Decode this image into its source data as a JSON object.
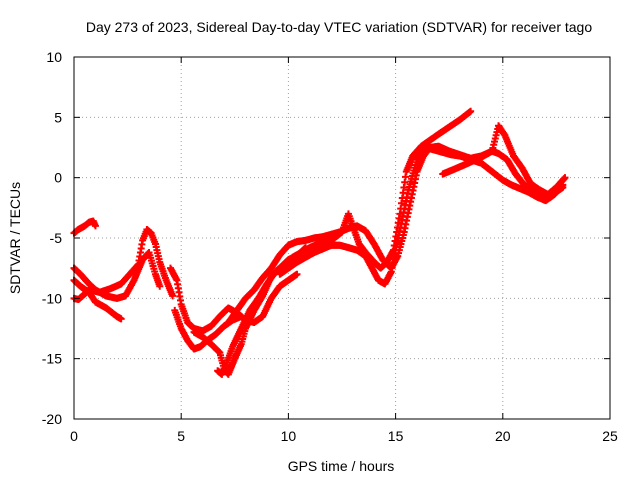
{
  "chart_data": {
    "type": "scatter",
    "title": "Day 273 of 2023, Sidereal Day-to-day VTEC variation (SDTVAR) for receiver tago",
    "xlabel": "GPS time / hours",
    "ylabel": "SDTVAR / TECUs",
    "xlim": [
      0,
      25
    ],
    "ylim": [
      -20,
      10
    ],
    "x_ticks": [
      0,
      5,
      10,
      15,
      20,
      25
    ],
    "y_ticks": [
      -20,
      -15,
      -10,
      -5,
      0,
      5,
      10
    ],
    "x_tick_labels": [
      "0",
      "5",
      "10",
      "15",
      "20",
      "25"
    ],
    "y_tick_labels": [
      "-20",
      "-15",
      "-10",
      "-5",
      "0",
      "5",
      "10"
    ],
    "grid": true,
    "marker": "plus",
    "color": "#ff0000",
    "series": [
      {
        "points": [
          [
            0.0,
            -4.6
          ],
          [
            0.2,
            -4.3
          ],
          [
            0.5,
            -4.0
          ],
          [
            0.7,
            -3.7
          ],
          [
            0.9,
            -3.6
          ],
          [
            1.0,
            -4.0
          ]
        ]
      },
      {
        "points": [
          [
            0.0,
            -7.5
          ],
          [
            0.3,
            -8.0
          ],
          [
            0.7,
            -8.8
          ],
          [
            1.0,
            -9.3
          ],
          [
            1.5,
            -9.8
          ],
          [
            2.0,
            -10.0
          ],
          [
            2.4,
            -9.8
          ],
          [
            2.8,
            -8.5
          ],
          [
            3.2,
            -6.8
          ],
          [
            3.5,
            -6.2
          ],
          [
            3.8,
            -8.0
          ],
          [
            4.0,
            -9.0
          ]
        ]
      },
      {
        "points": [
          [
            0.0,
            -8.5
          ],
          [
            0.3,
            -9.0
          ],
          [
            0.7,
            -9.5
          ],
          [
            1.0,
            -10.3
          ],
          [
            1.5,
            -10.8
          ],
          [
            2.0,
            -11.5
          ],
          [
            2.2,
            -11.7
          ]
        ]
      },
      {
        "points": [
          [
            0.0,
            -10.0
          ],
          [
            0.2,
            -10.1
          ],
          [
            0.4,
            -9.8
          ],
          [
            0.7,
            -9.3
          ],
          [
            1.2,
            -9.5
          ],
          [
            1.7,
            -9.2
          ],
          [
            2.2,
            -8.8
          ],
          [
            2.6,
            -8.0
          ],
          [
            3.0,
            -7.2
          ],
          [
            3.2,
            -5.2
          ],
          [
            3.4,
            -4.3
          ],
          [
            3.6,
            -4.6
          ],
          [
            3.8,
            -5.5
          ],
          [
            4.0,
            -7.0
          ],
          [
            4.3,
            -8.5
          ],
          [
            4.6,
            -9.8
          ]
        ]
      },
      {
        "points": [
          [
            4.5,
            -7.5
          ],
          [
            4.8,
            -8.5
          ],
          [
            5.0,
            -10.5
          ],
          [
            5.3,
            -12.0
          ],
          [
            5.6,
            -12.5
          ],
          [
            6.0,
            -12.7
          ],
          [
            6.4,
            -12.3
          ],
          [
            6.8,
            -11.5
          ],
          [
            7.2,
            -10.8
          ],
          [
            7.6,
            -11.2
          ],
          [
            8.0,
            -11.8
          ],
          [
            8.4,
            -12.0
          ],
          [
            8.8,
            -11.5
          ],
          [
            9.2,
            -10.0
          ],
          [
            9.6,
            -9.0
          ],
          [
            10.0,
            -8.5
          ],
          [
            10.4,
            -8.0
          ]
        ]
      },
      {
        "points": [
          [
            4.7,
            -11.0
          ],
          [
            5.0,
            -12.5
          ],
          [
            5.3,
            -13.5
          ],
          [
            5.6,
            -14.2
          ],
          [
            5.9,
            -14.0
          ],
          [
            6.2,
            -13.5
          ],
          [
            6.6,
            -13.0
          ],
          [
            7.0,
            -12.3
          ],
          [
            7.4,
            -11.8
          ],
          [
            7.8,
            -11.5
          ]
        ]
      },
      {
        "points": [
          [
            5.6,
            -12.8
          ],
          [
            6.0,
            -13.2
          ],
          [
            6.4,
            -13.8
          ],
          [
            6.8,
            -14.5
          ],
          [
            7.0,
            -15.8
          ],
          [
            7.2,
            -16.3
          ],
          [
            7.5,
            -15.0
          ],
          [
            7.8,
            -13.8
          ],
          [
            8.0,
            -12.5
          ],
          [
            8.4,
            -11.0
          ],
          [
            8.8,
            -9.8
          ],
          [
            9.2,
            -8.2
          ],
          [
            9.6,
            -7.5
          ],
          [
            10.0,
            -6.8
          ],
          [
            10.4,
            -6.5
          ],
          [
            10.8,
            -5.8
          ]
        ]
      },
      {
        "points": [
          [
            6.7,
            -16.0
          ],
          [
            6.9,
            -16.3
          ],
          [
            7.1,
            -15.5
          ],
          [
            7.4,
            -14.0
          ],
          [
            7.8,
            -12.5
          ],
          [
            8.2,
            -11.0
          ],
          [
            8.6,
            -10.0
          ],
          [
            9.0,
            -8.8
          ],
          [
            9.4,
            -7.8
          ],
          [
            9.8,
            -7.2
          ],
          [
            10.2,
            -6.6
          ],
          [
            10.6,
            -6.2
          ],
          [
            11.0,
            -5.8
          ],
          [
            11.5,
            -5.4
          ],
          [
            12.0,
            -5.2
          ],
          [
            12.5,
            -4.5
          ],
          [
            12.8,
            -3.0
          ],
          [
            13.0,
            -4.0
          ],
          [
            13.3,
            -5.5
          ],
          [
            13.6,
            -6.2
          ],
          [
            14.0,
            -7.0
          ],
          [
            14.3,
            -7.5
          ],
          [
            14.6,
            -7.0
          ],
          [
            14.9,
            -6.0
          ],
          [
            15.2,
            -3.0
          ],
          [
            15.5,
            0.5
          ],
          [
            15.8,
            1.8
          ],
          [
            16.2,
            2.6
          ],
          [
            16.6,
            3.1
          ],
          [
            17.0,
            3.6
          ],
          [
            17.5,
            4.2
          ],
          [
            18.0,
            4.8
          ],
          [
            18.5,
            5.5
          ]
        ]
      },
      {
        "points": [
          [
            7.2,
            -12.0
          ],
          [
            7.6,
            -11.0
          ],
          [
            8.0,
            -10.0
          ],
          [
            8.4,
            -9.3
          ],
          [
            8.8,
            -8.3
          ],
          [
            9.2,
            -7.5
          ],
          [
            9.6,
            -6.4
          ],
          [
            10.0,
            -5.6
          ],
          [
            10.4,
            -5.3
          ],
          [
            10.8,
            -5.2
          ],
          [
            11.2,
            -5.0
          ],
          [
            11.6,
            -4.9
          ],
          [
            12.0,
            -4.7
          ],
          [
            12.4,
            -4.5
          ],
          [
            12.8,
            -4.2
          ],
          [
            13.2,
            -4.0
          ],
          [
            13.6,
            -4.4
          ],
          [
            14.0,
            -5.5
          ],
          [
            14.4,
            -6.8
          ],
          [
            14.8,
            -7.5
          ],
          [
            15.1,
            -6.5
          ],
          [
            15.4,
            -4.5
          ],
          [
            15.7,
            -2.0
          ],
          [
            16.0,
            0.5
          ],
          [
            16.3,
            1.8
          ],
          [
            16.6,
            2.5
          ],
          [
            17.0,
            2.6
          ],
          [
            17.5,
            2.2
          ],
          [
            18.0,
            1.9
          ],
          [
            18.5,
            1.6
          ],
          [
            19.0,
            1.8
          ],
          [
            19.5,
            2.2
          ],
          [
            19.8,
            2.0
          ],
          [
            20.2,
            1.5
          ],
          [
            20.6,
            0.3
          ],
          [
            21.0,
            -0.6
          ],
          [
            21.5,
            -1.2
          ],
          [
            22.0,
            -1.5
          ],
          [
            22.4,
            -1.3
          ],
          [
            22.8,
            -0.8
          ]
        ]
      },
      {
        "points": [
          [
            9.6,
            -8.0
          ],
          [
            10.0,
            -7.5
          ],
          [
            10.4,
            -7.0
          ],
          [
            10.8,
            -6.6
          ],
          [
            11.2,
            -6.2
          ],
          [
            11.6,
            -5.9
          ],
          [
            12.0,
            -5.6
          ],
          [
            12.4,
            -5.6
          ],
          [
            12.8,
            -5.8
          ],
          [
            13.2,
            -6.0
          ],
          [
            13.6,
            -6.5
          ],
          [
            13.9,
            -7.5
          ],
          [
            14.2,
            -8.5
          ],
          [
            14.5,
            -8.8
          ],
          [
            14.8,
            -7.8
          ],
          [
            15.0,
            -6.0
          ],
          [
            15.3,
            -3.5
          ],
          [
            15.6,
            -1.0
          ],
          [
            16.0,
            1.5
          ],
          [
            16.4,
            2.5
          ],
          [
            16.8,
            2.3
          ],
          [
            17.2,
            2.1
          ],
          [
            17.6,
            1.9
          ],
          [
            18.0,
            1.8
          ],
          [
            18.5,
            1.5
          ],
          [
            19.0,
            1.2
          ],
          [
            19.5,
            0.5
          ],
          [
            20.0,
            -0.2
          ],
          [
            20.4,
            -0.6
          ],
          [
            20.8,
            -0.9
          ],
          [
            21.2,
            -1.2
          ],
          [
            21.6,
            -1.6
          ],
          [
            22.0,
            -1.9
          ],
          [
            22.4,
            -1.4
          ],
          [
            22.8,
            -0.6
          ]
        ]
      },
      {
        "points": [
          [
            17.2,
            0.3
          ],
          [
            17.6,
            0.6
          ],
          [
            18.0,
            0.9
          ],
          [
            18.5,
            1.3
          ],
          [
            19.0,
            1.7
          ],
          [
            19.5,
            2.2
          ],
          [
            19.8,
            4.3
          ],
          [
            20.1,
            3.5
          ],
          [
            20.5,
            1.8
          ],
          [
            20.9,
            0.8
          ],
          [
            21.3,
            -0.5
          ],
          [
            21.7,
            -1.0
          ],
          [
            22.1,
            -1.4
          ],
          [
            22.5,
            -0.8
          ],
          [
            22.8,
            -0.2
          ],
          [
            22.9,
            0.0
          ]
        ]
      }
    ]
  }
}
